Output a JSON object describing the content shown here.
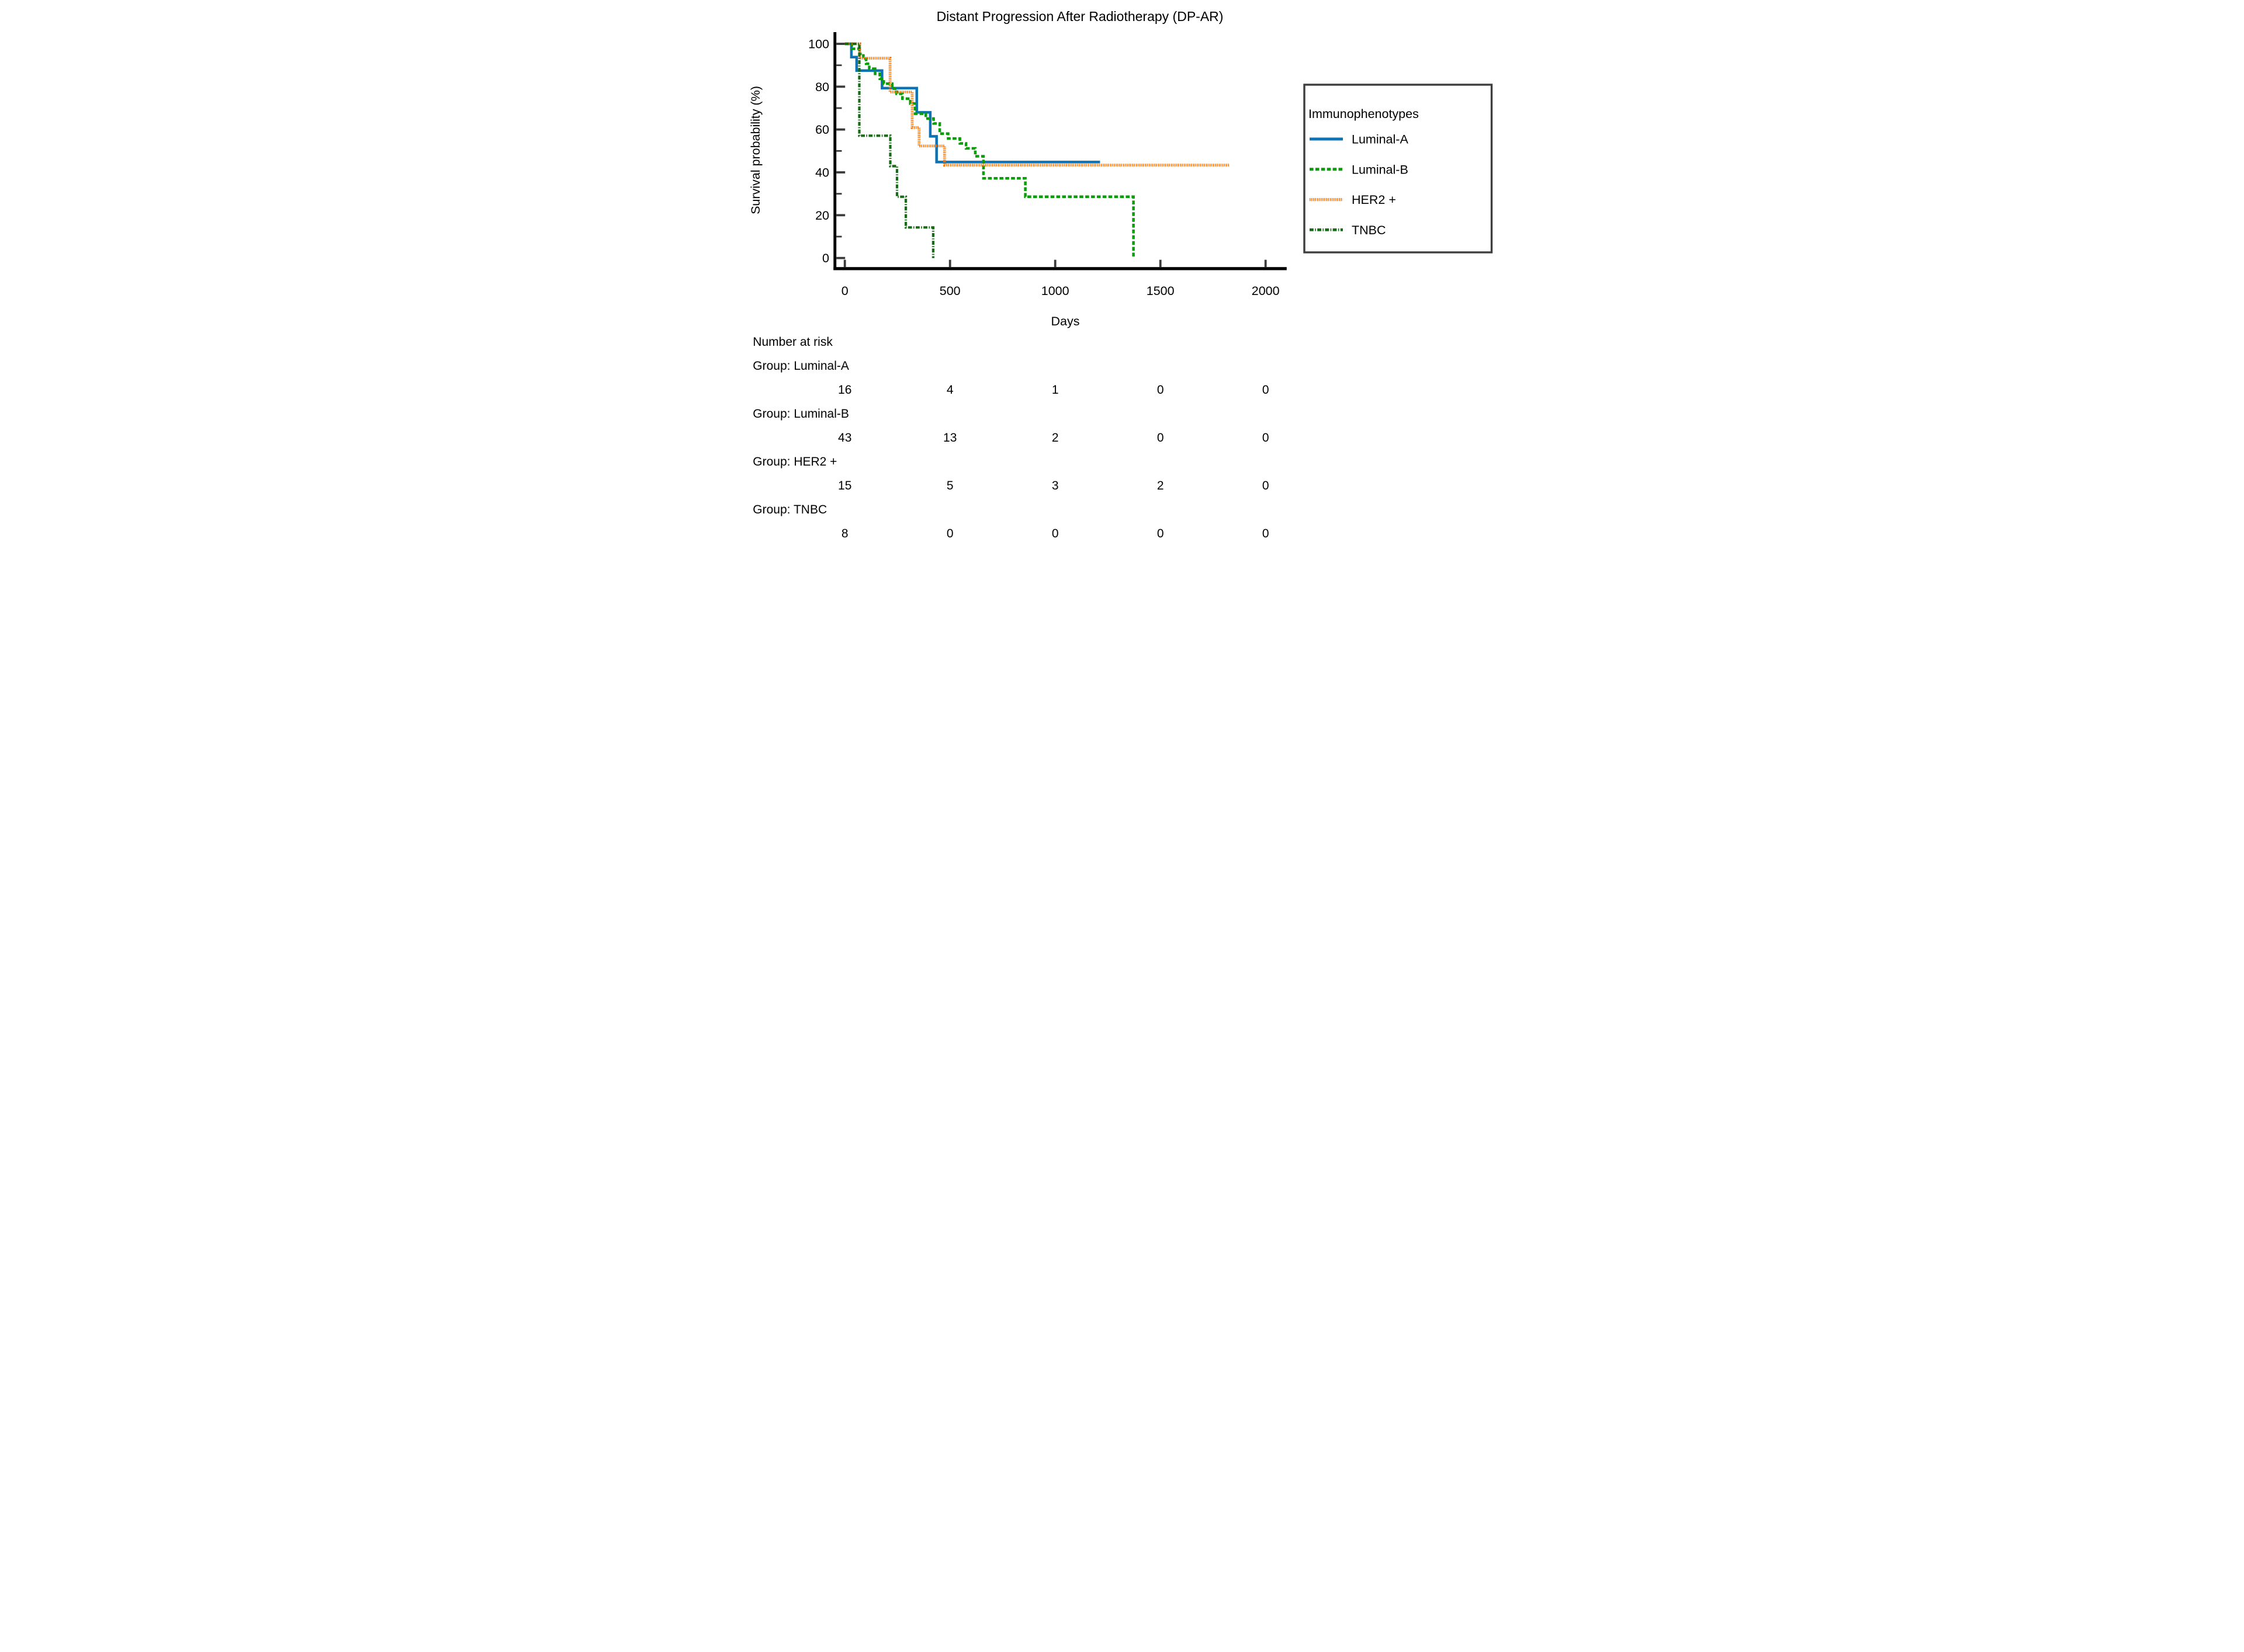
{
  "title": "Distant Progression After Radiotherapy (DP-AR)",
  "axes": {
    "x": {
      "label": "Days",
      "ticks": [
        0,
        500,
        1000,
        1500,
        2000
      ],
      "range": [
        0,
        2000
      ]
    },
    "y": {
      "label": "Survival probability (%)",
      "ticks": [
        0,
        20,
        40,
        60,
        80,
        100
      ],
      "minor_ticks": [
        10,
        30,
        50,
        70,
        90
      ],
      "range": [
        0,
        100
      ]
    }
  },
  "legend": {
    "title": "Immunophenotypes"
  },
  "chart_data": {
    "type": "line",
    "variant": "kaplan-meier-step",
    "title": "Distant Progression After Radiotherapy (DP-AR)",
    "xlabel": "Days",
    "ylabel": "Survival probability (%)",
    "xlim": [
      0,
      2000
    ],
    "ylim": [
      0,
      100
    ],
    "grid": false,
    "legend_position": "right",
    "series": [
      {
        "name": "Luminal-A",
        "color": "#0d73b5",
        "line_style": "solid",
        "points": [
          [
            0,
            100
          ],
          [
            31,
            93.8
          ],
          [
            56,
            87.5
          ],
          [
            177,
            79.3
          ],
          [
            342,
            68.0
          ],
          [
            406,
            56.8
          ],
          [
            436,
            44.8
          ]
        ],
        "end_day": 1213
      },
      {
        "name": "Luminal-B",
        "color": "#0a9d0a",
        "line_style": "dashed",
        "points": [
          [
            0,
            100
          ],
          [
            33,
            97.7
          ],
          [
            70,
            95.3
          ],
          [
            88,
            93.0
          ],
          [
            101,
            90.7
          ],
          [
            116,
            88.4
          ],
          [
            144,
            86.0
          ],
          [
            166,
            83.7
          ],
          [
            185,
            81.4
          ],
          [
            225,
            79.1
          ],
          [
            246,
            76.7
          ],
          [
            274,
            74.4
          ],
          [
            311,
            72.1
          ],
          [
            334,
            67.4
          ],
          [
            385,
            65.1
          ],
          [
            422,
            62.8
          ],
          [
            451,
            58.1
          ],
          [
            491,
            55.8
          ],
          [
            547,
            53.5
          ],
          [
            576,
            51.2
          ],
          [
            620,
            47.5
          ],
          [
            659,
            37.2
          ],
          [
            858,
            28.6
          ],
          [
            1372,
            0
          ]
        ],
        "end_day": 1372
      },
      {
        "name": "HER2 +",
        "color": "#ff7405",
        "line_style": "dotted",
        "points": [
          [
            0,
            100
          ],
          [
            71,
            93.3
          ],
          [
            215,
            77.5
          ],
          [
            320,
            60.9
          ],
          [
            353,
            52.3
          ],
          [
            474,
            43.4
          ]
        ],
        "end_day": 1827
      },
      {
        "name": "TNBC",
        "color": "#166b16",
        "line_style": "dashdot",
        "points": [
          [
            0,
            100
          ],
          [
            69,
            57.1
          ],
          [
            216,
            42.9
          ],
          [
            248,
            28.6
          ],
          [
            290,
            14.3
          ],
          [
            420,
            0
          ]
        ],
        "end_day": 420
      }
    ]
  },
  "risk_table": {
    "header": "Number at risk",
    "columns_days": [
      0,
      500,
      1000,
      1500,
      2000
    ],
    "text_color": "#00008B",
    "groups": [
      {
        "label": "Group: Luminal-A",
        "values": [
          "16",
          "4",
          "1",
          "0",
          "0"
        ]
      },
      {
        "label": "Group: Luminal-B",
        "values": [
          "43",
          "13",
          "2",
          "0",
          "0"
        ]
      },
      {
        "label": "Group: HER2 +",
        "values": [
          "15",
          "5",
          "3",
          "2",
          "0"
        ]
      },
      {
        "label": "Group: TNBC",
        "values": [
          "8",
          "0",
          "0",
          "0",
          "0"
        ]
      }
    ]
  },
  "style": {
    "axis_color": "#000000",
    "tick_color": "#3b3b3b",
    "legend_border_color": "#3d3d3d",
    "background": "#ffffff"
  }
}
